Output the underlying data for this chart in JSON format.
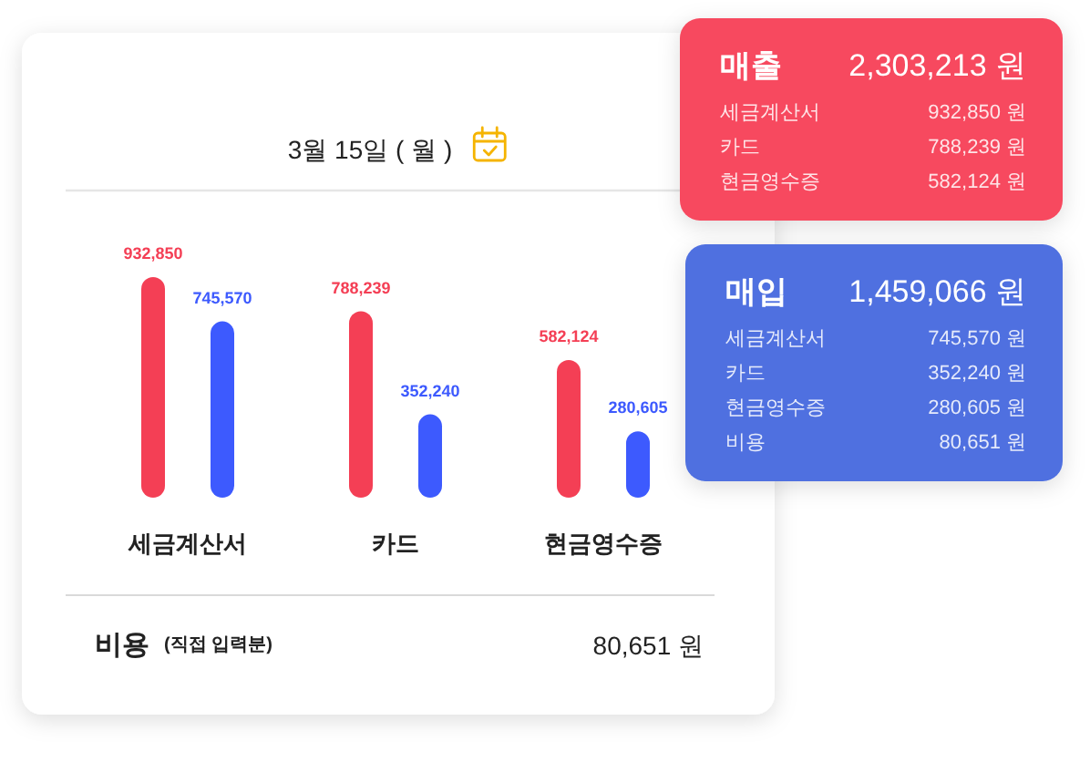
{
  "chart_data": [
    {
      "type": "bar",
      "title": "3월 15일 ( 월 )",
      "categories": [
        "세금계산서",
        "카드",
        "현금영수증"
      ],
      "series": [
        {
          "color": "#f43f55",
          "values": [
            932850,
            788239,
            582124
          ],
          "value_labels": [
            "932,850",
            "788,239",
            "582,124"
          ]
        },
        {
          "color": "#3d5afe",
          "values": [
            745570,
            352240,
            280605
          ],
          "value_labels": [
            "745,570",
            "352,240",
            "280,605"
          ]
        }
      ],
      "annotations": [
        "비용",
        "(직접 입력분)",
        "80,651 원"
      ]
    },
    {
      "type": "other",
      "title": "매출",
      "annotations": [
        "2,303,213 원",
        "세금계산서",
        "932,850 원",
        "카드",
        "788,239 원",
        "현금영수증",
        "582,124 원"
      ]
    },
    {
      "type": "other",
      "title": "매입",
      "annotations": [
        "1,459,066 원",
        "세금계산서",
        "745,570 원",
        "카드",
        "352,240 원",
        "현금영수증",
        "280,605 원",
        "비용",
        "80,651 원"
      ]
    }
  ]
}
